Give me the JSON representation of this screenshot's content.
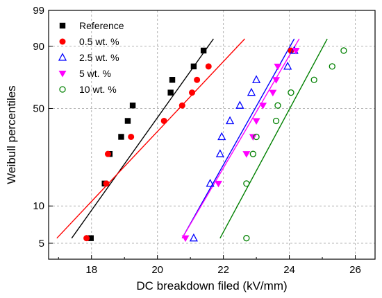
{
  "chart_data": {
    "type": "scatter",
    "title": "",
    "xlabel": "DC breakdown filed (kV/mm)",
    "ylabel": "Weibull percentiles",
    "xlim": [
      16.7,
      26.6
    ],
    "ylim_percent": [
      3.7,
      99
    ],
    "y_scale": "weibull",
    "x_ticks": [
      "18",
      "20",
      "22",
      "24",
      "26"
    ],
    "y_ticks": [
      "5",
      "10",
      "50",
      "90",
      "99"
    ],
    "grid": true,
    "legend_position": "top-left",
    "series": [
      {
        "name": "Reference",
        "marker": "filled-square",
        "color": "#000000",
        "x": [
          17.98,
          18.4,
          18.55,
          18.9,
          19.1,
          19.25,
          20.4,
          20.45,
          21.1,
          21.4
        ],
        "y": [
          5.5,
          15,
          25,
          33,
          42,
          52,
          61,
          70,
          79,
          88
        ],
        "fit": {
          "x": [
            17.4,
            21.7
          ],
          "y": [
            5.5,
            93
          ]
        }
      },
      {
        "name": "0.5 wt. %",
        "marker": "filled-circle",
        "color": "#ff0000",
        "x": [
          17.85,
          18.45,
          18.5,
          19.2,
          20.2,
          20.75,
          21.05,
          21.2,
          21.55,
          24.05
        ],
        "y": [
          5.5,
          15,
          25,
          33,
          42,
          52,
          61,
          70,
          79,
          88
        ],
        "fit": {
          "x": [
            16.95,
            22.65
          ],
          "y": [
            5.5,
            93
          ]
        }
      },
      {
        "name": "2.5 wt. %",
        "marker": "open-triangle-up",
        "color": "#0000ff",
        "x": [
          21.1,
          21.6,
          21.9,
          21.95,
          22.2,
          22.5,
          22.85,
          23.0,
          23.95,
          24.15
        ],
        "y": [
          5.5,
          15,
          25,
          33,
          42,
          52,
          61,
          70,
          79,
          88
        ],
        "fit": {
          "x": [
            20.75,
            24.15
          ],
          "y": [
            5.5,
            93
          ]
        }
      },
      {
        "name": "5 wt. %",
        "marker": "filled-triangle-down",
        "color": "#ff00ff",
        "x": [
          20.85,
          21.85,
          22.7,
          22.9,
          23.0,
          23.2,
          23.5,
          23.6,
          23.65,
          24.2
        ],
        "y": [
          5.5,
          15,
          25,
          33,
          42,
          52,
          61,
          70,
          79,
          88
        ],
        "fit": {
          "x": [
            20.75,
            24.3
          ],
          "y": [
            5.5,
            93
          ]
        }
      },
      {
        "name": "10 wt. %",
        "marker": "open-circle",
        "color": "#008000",
        "x": [
          22.7,
          22.7,
          22.9,
          23.0,
          23.6,
          23.65,
          24.05,
          24.75,
          25.3,
          25.65
        ],
        "y": [
          5.5,
          15,
          25,
          33,
          42,
          52,
          61,
          70,
          79,
          88
        ],
        "fit": {
          "x": [
            21.9,
            25.15
          ],
          "y": [
            5.5,
            93
          ]
        }
      }
    ]
  }
}
